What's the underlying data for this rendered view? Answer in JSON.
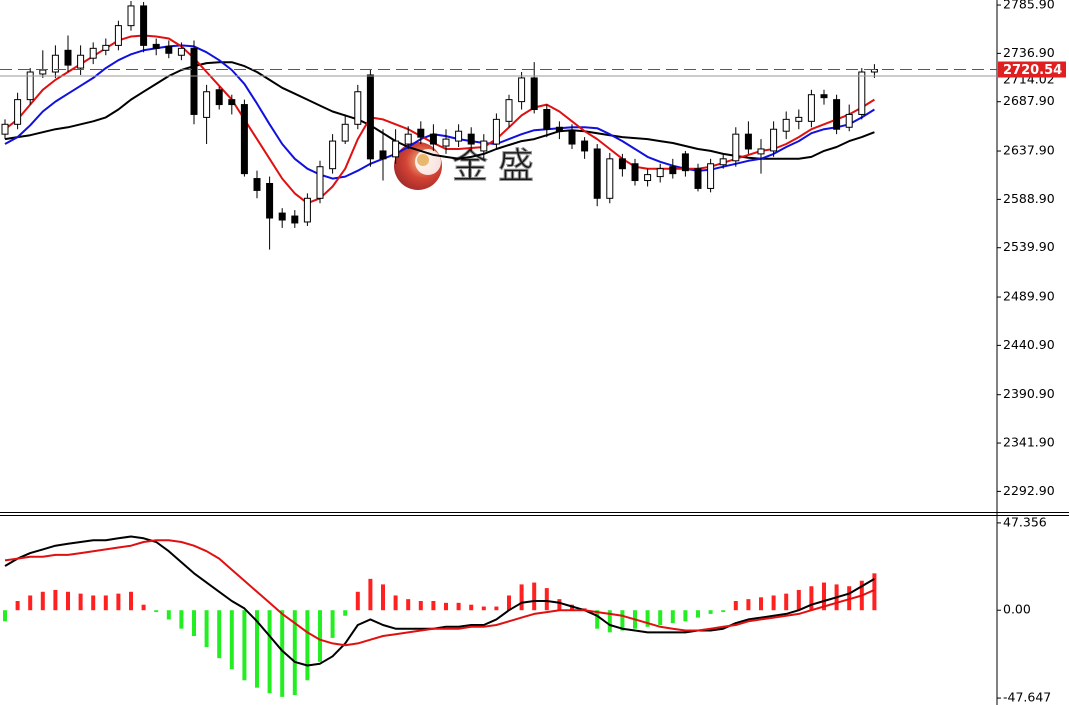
{
  "chart_data": [
    {
      "type": "candlestick",
      "ylim": [
        2272,
        2791
      ],
      "yticks": [
        {
          "value": 2785.9,
          "label": "2785.90"
        },
        {
          "value": 2736.9,
          "label": "2736.90"
        },
        {
          "value": 2687.9,
          "label": "2687.90"
        },
        {
          "value": 2637.9,
          "label": "2637.90"
        },
        {
          "value": 2588.9,
          "label": "2588.90"
        },
        {
          "value": 2539.9,
          "label": "2539.90"
        },
        {
          "value": 2489.9,
          "label": "2489.90"
        },
        {
          "value": 2440.9,
          "label": "2440.90"
        },
        {
          "value": 2390.9,
          "label": "2390.90"
        },
        {
          "value": 2341.9,
          "label": "2341.90"
        },
        {
          "value": 2292.9,
          "label": "2292.90"
        }
      ],
      "watermark": "金盛",
      "up_color": "#ffffff",
      "down_color": "#000000",
      "open": [
        2655,
        2665,
        2690,
        2716,
        2718,
        2740,
        2722,
        2732,
        2740,
        2745,
        2765,
        2785,
        2746,
        2744,
        2735,
        2742,
        2672,
        2700,
        2690,
        2685,
        2610,
        2605,
        2575,
        2572,
        2566,
        2590,
        2620,
        2648,
        2665,
        2715,
        2638,
        2632,
        2645,
        2660,
        2655,
        2643,
        2648,
        2655,
        2638,
        2645,
        2668,
        2688,
        2712,
        2680,
        2662,
        2658,
        2648,
        2640,
        2590,
        2630,
        2625,
        2608,
        2612,
        2622,
        2635,
        2620,
        2600,
        2624,
        2628,
        2655,
        2635,
        2638,
        2658,
        2668,
        2668,
        2695,
        2690,
        2662,
        2675,
        2718
      ],
      "high": [
        2670,
        2697,
        2722,
        2740,
        2745,
        2755,
        2745,
        2748,
        2752,
        2770,
        2790,
        2789,
        2752,
        2750,
        2748,
        2750,
        2705,
        2703,
        2695,
        2690,
        2618,
        2612,
        2580,
        2578,
        2595,
        2628,
        2655,
        2675,
        2705,
        2720,
        2660,
        2660,
        2663,
        2668,
        2665,
        2660,
        2665,
        2662,
        2655,
        2676,
        2695,
        2718,
        2728,
        2685,
        2668,
        2665,
        2652,
        2645,
        2636,
        2635,
        2630,
        2620,
        2625,
        2630,
        2638,
        2625,
        2630,
        2634,
        2662,
        2668,
        2650,
        2668,
        2678,
        2680,
        2700,
        2700,
        2695,
        2685,
        2722,
        2726
      ],
      "low": [
        2650,
        2660,
        2685,
        2712,
        2712,
        2718,
        2715,
        2726,
        2735,
        2740,
        2760,
        2738,
        2735,
        2732,
        2730,
        2665,
        2645,
        2680,
        2675,
        2612,
        2590,
        2538,
        2560,
        2560,
        2562,
        2585,
        2615,
        2645,
        2660,
        2622,
        2608,
        2625,
        2640,
        2645,
        2638,
        2635,
        2642,
        2638,
        2630,
        2640,
        2662,
        2680,
        2676,
        2652,
        2650,
        2640,
        2630,
        2582,
        2585,
        2612,
        2603,
        2602,
        2606,
        2610,
        2612,
        2597,
        2596,
        2620,
        2622,
        2635,
        2615,
        2632,
        2650,
        2660,
        2662,
        2685,
        2655,
        2658,
        2670,
        2712
      ],
      "close": [
        2665,
        2690,
        2718,
        2720,
        2735,
        2725,
        2735,
        2742,
        2745,
        2765,
        2785,
        2745,
        2742,
        2737,
        2742,
        2675,
        2698,
        2685,
        2685,
        2615,
        2598,
        2570,
        2568,
        2565,
        2590,
        2622,
        2648,
        2665,
        2698,
        2630,
        2630,
        2648,
        2655,
        2652,
        2645,
        2650,
        2658,
        2645,
        2648,
        2670,
        2690,
        2712,
        2680,
        2660,
        2658,
        2645,
        2638,
        2590,
        2630,
        2620,
        2608,
        2614,
        2620,
        2615,
        2618,
        2600,
        2625,
        2630,
        2655,
        2640,
        2640,
        2660,
        2670,
        2672,
        2695,
        2692,
        2660,
        2675,
        2718,
        2720.54
      ],
      "series": [
        {
          "color": "#000000",
          "values": [
            2650,
            2652,
            2654,
            2657,
            2660,
            2662,
            2665,
            2668,
            2672,
            2680,
            2690,
            2698,
            2706,
            2714,
            2720,
            2724,
            2727,
            2728,
            2728,
            2724,
            2718,
            2710,
            2702,
            2696,
            2690,
            2684,
            2678,
            2674,
            2670,
            2664,
            2656,
            2648,
            2642,
            2638,
            2634,
            2632,
            2630,
            2632,
            2635,
            2640,
            2644,
            2648,
            2650,
            2654,
            2658,
            2659,
            2658,
            2656,
            2654,
            2652,
            2651,
            2650,
            2648,
            2646,
            2643,
            2640,
            2638,
            2635,
            2633,
            2631,
            2630,
            2630,
            2630,
            2630,
            2632,
            2638,
            2642,
            2648,
            2652,
            2657
          ]
        },
        {
          "color": "#1010e0",
          "values": [
            2645,
            2652,
            2664,
            2678,
            2688,
            2696,
            2704,
            2712,
            2722,
            2730,
            2736,
            2740,
            2742,
            2744,
            2745,
            2744,
            2738,
            2730,
            2720,
            2706,
            2686,
            2665,
            2645,
            2630,
            2620,
            2614,
            2610,
            2612,
            2618,
            2625,
            2630,
            2635,
            2642,
            2650,
            2655,
            2653,
            2650,
            2648,
            2646,
            2645,
            2650,
            2655,
            2659,
            2660,
            2661,
            2662,
            2662,
            2661,
            2655,
            2648,
            2640,
            2632,
            2627,
            2623,
            2620,
            2618,
            2619,
            2622,
            2625,
            2628,
            2630,
            2635,
            2642,
            2648,
            2656,
            2660,
            2662,
            2665,
            2672,
            2680
          ]
        },
        {
          "color": "#e01010",
          "values": [
            2660,
            2670,
            2685,
            2700,
            2710,
            2718,
            2726,
            2734,
            2742,
            2750,
            2754,
            2755,
            2754,
            2752,
            2744,
            2732,
            2718,
            2704,
            2690,
            2670,
            2650,
            2630,
            2610,
            2595,
            2585,
            2590,
            2602,
            2620,
            2650,
            2672,
            2670,
            2665,
            2660,
            2653,
            2646,
            2640,
            2640,
            2641,
            2642,
            2650,
            2662,
            2674,
            2682,
            2685,
            2678,
            2668,
            2658,
            2650,
            2640,
            2630,
            2622,
            2620,
            2620,
            2620,
            2620,
            2620,
            2622,
            2626,
            2630,
            2634,
            2638,
            2640,
            2645,
            2652,
            2660,
            2665,
            2670,
            2675,
            2682,
            2690
          ]
        }
      ],
      "hlines": [
        {
          "value": 2714.02,
          "label": "2714.02",
          "color": "#999999"
        },
        {
          "value": 2720.54,
          "label": "2720.54",
          "color": "#e02020",
          "dashed": true
        }
      ]
    },
    {
      "type": "macd",
      "ylim": [
        -51.4,
        51.1
      ],
      "yticks": [
        47.356,
        {
          "value": 0,
          "label": "0.00"
        },
        -47.647
      ],
      "positive_color": "#ff2020",
      "negative_color": "#22ee22",
      "histogram": [
        -6,
        5,
        8,
        10,
        11,
        10,
        9,
        8,
        8,
        9,
        10,
        3,
        -1,
        -5,
        -10,
        -14,
        -20,
        -26,
        -32,
        -38,
        -42,
        -45,
        -47,
        -46,
        -38,
        -28,
        -15,
        -3,
        10,
        17,
        14,
        8,
        6,
        5,
        5,
        4,
        4,
        3,
        2,
        2,
        8,
        14,
        15,
        12,
        6,
        3,
        1,
        -10,
        -12,
        -11,
        -10,
        -9,
        -8,
        -7,
        -6,
        -4,
        -2,
        -1,
        5,
        6,
        7,
        8,
        9,
        11,
        13,
        15,
        14,
        13,
        16,
        20
      ],
      "series": [
        {
          "color": "#000000",
          "values": [
            24,
            28,
            31,
            33,
            35,
            36,
            37,
            38,
            38,
            39,
            40,
            39,
            37,
            32,
            26,
            20,
            15,
            10,
            5,
            1,
            -6,
            -14,
            -22,
            -28,
            -30,
            -29,
            -25,
            -18,
            -8,
            -5,
            -8,
            -10,
            -10,
            -10,
            -10,
            -9,
            -9,
            -8,
            -8,
            -5,
            0,
            4,
            5,
            5,
            4,
            2,
            0,
            -3,
            -8,
            -10,
            -11,
            -12,
            -12,
            -12,
            -12,
            -11,
            -11,
            -10,
            -7,
            -5,
            -4,
            -3,
            -2,
            0,
            3,
            5,
            7,
            9,
            13,
            17
          ]
        },
        {
          "color": "#e01010",
          "values": [
            27,
            28,
            29,
            29,
            30,
            30,
            31,
            32,
            33,
            34,
            35,
            37,
            38,
            38,
            37,
            35,
            32,
            28,
            22,
            16,
            10,
            4,
            -2,
            -7,
            -12,
            -16,
            -18,
            -19,
            -18,
            -16,
            -14,
            -13,
            -12,
            -11,
            -10,
            -10,
            -10,
            -9,
            -9,
            -8,
            -6,
            -4,
            -2,
            -1,
            0,
            0,
            0,
            -1,
            -2,
            -3,
            -5,
            -7,
            -9,
            -10,
            -11,
            -11,
            -10,
            -9,
            -8,
            -6,
            -5,
            -4,
            -3,
            -2,
            0,
            2,
            4,
            6,
            8,
            11
          ]
        }
      ]
    }
  ]
}
